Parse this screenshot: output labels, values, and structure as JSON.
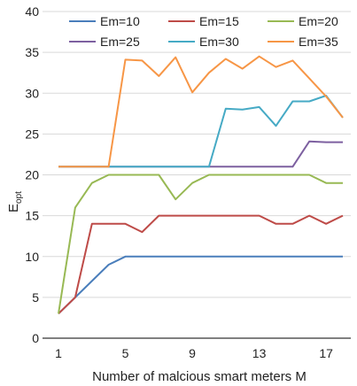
{
  "chart_data": {
    "type": "line",
    "xlabel": "Number of malcious smart meters M",
    "ylabel": "E",
    "ylabel_sub": "opt",
    "xlim": [
      1,
      18
    ],
    "ylim": [
      0,
      40
    ],
    "xticks": [
      1,
      5,
      9,
      13,
      17
    ],
    "yticks": [
      0,
      5,
      10,
      15,
      20,
      25,
      30,
      35,
      40
    ],
    "grid": "horizontal",
    "legend": "top",
    "x": [
      1,
      2,
      3,
      4,
      5,
      6,
      7,
      8,
      9,
      10,
      11,
      12,
      13,
      14,
      15,
      16,
      17,
      18
    ],
    "series": [
      {
        "name": "Em=10",
        "color": "#4a7ebb",
        "values": [
          3,
          5,
          7,
          9,
          10,
          10,
          10,
          10,
          10,
          10,
          10,
          10,
          10,
          10,
          10,
          10,
          10,
          10
        ]
      },
      {
        "name": "Em=15",
        "color": "#be4b48",
        "values": [
          3,
          5,
          14,
          14,
          14,
          13,
          15,
          15,
          15,
          15,
          15,
          15,
          15,
          14,
          14,
          15,
          14,
          15
        ]
      },
      {
        "name": "Em=20",
        "color": "#98b954",
        "values": [
          3,
          16,
          19,
          20,
          20,
          20,
          20,
          17,
          19,
          20,
          20,
          20,
          20,
          20,
          20,
          20,
          19,
          19
        ]
      },
      {
        "name": "Em=25",
        "color": "#7d60a0",
        "values": [
          21,
          21,
          21,
          21,
          21,
          21,
          21,
          21,
          21,
          21,
          21,
          21,
          21,
          21,
          21,
          24.1,
          24,
          24
        ]
      },
      {
        "name": "Em=30",
        "color": "#46aac5",
        "values": [
          21,
          21,
          21,
          21,
          21,
          21,
          21,
          21,
          21,
          21,
          28.1,
          28,
          28.3,
          26,
          29,
          29,
          29.7,
          27
        ]
      },
      {
        "name": "Em=35",
        "color": "#f79646",
        "values": [
          21,
          21,
          21,
          21,
          34.1,
          34,
          32.1,
          34.4,
          30.1,
          32.5,
          34.2,
          33,
          34.5,
          33.2,
          34,
          31.8,
          29.6,
          27
        ]
      }
    ]
  }
}
